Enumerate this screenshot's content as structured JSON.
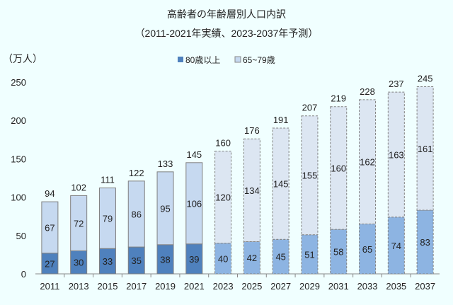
{
  "chart_data": {
    "type": "bar",
    "stacked": true,
    "title": "高齢者の年齢層別人口内訳",
    "subtitle": "（2011-2021年実績、2023-2037年予測）",
    "ylabel": "（万人）",
    "xlabel": "",
    "ylim": [
      0,
      250
    ],
    "yticks": [
      0,
      50,
      100,
      150,
      200,
      250
    ],
    "categories": [
      "2011",
      "2013",
      "2015",
      "2017",
      "2019",
      "2021",
      "2023",
      "2025",
      "2027",
      "2029",
      "2031",
      "2033",
      "2035",
      "2037"
    ],
    "projected_from": "2023",
    "series": [
      {
        "name": "80歳以上",
        "values": [
          27,
          30,
          33,
          35,
          38,
          39,
          40,
          42,
          45,
          51,
          58,
          65,
          74,
          83
        ],
        "color": "#4F81BD",
        "projected_color": "#8DB4E2"
      },
      {
        "name": "65~79歳",
        "values": [
          67,
          72,
          79,
          86,
          95,
          106,
          120,
          134,
          145,
          155,
          160,
          162,
          163,
          161
        ],
        "color": "#C6D9F0",
        "projected_color": "#DCE6F2"
      }
    ],
    "totals": [
      94,
      102,
      111,
      122,
      133,
      145,
      160,
      176,
      191,
      207,
      219,
      228,
      237,
      245
    ],
    "legend_position": "top-center",
    "grid": false
  }
}
